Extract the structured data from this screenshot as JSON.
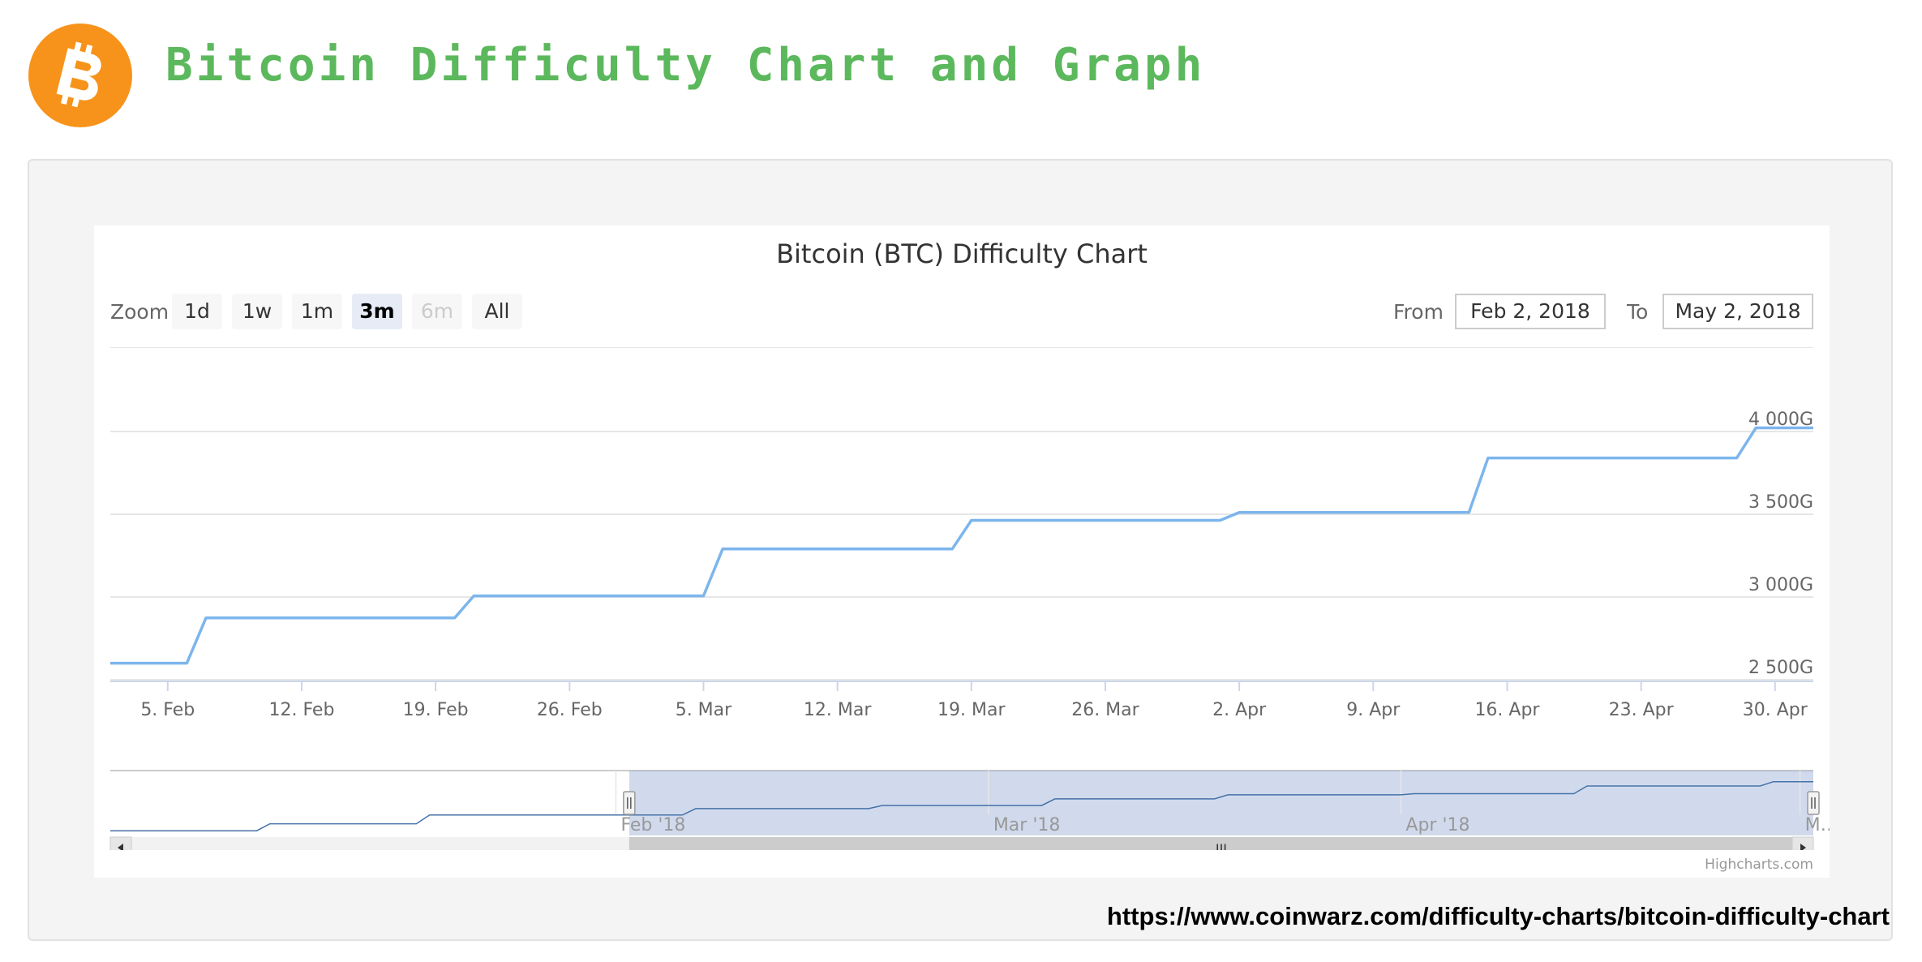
{
  "header": {
    "title": "Bitcoin Difficulty Chart and Graph",
    "logo_icon": "bitcoin-logo-icon",
    "logo_color": "#f7931a",
    "title_color": "#5cb85c"
  },
  "chart_panel": {
    "chart_title": "Bitcoin (BTC) Difficulty Chart",
    "zoom_label": "Zoom",
    "zoom_buttons": [
      {
        "label": "1d",
        "state": "normal"
      },
      {
        "label": "1w",
        "state": "normal"
      },
      {
        "label": "1m",
        "state": "normal"
      },
      {
        "label": "3m",
        "state": "active"
      },
      {
        "label": "6m",
        "state": "disabled"
      },
      {
        "label": "All",
        "state": "normal"
      }
    ],
    "from_label": "From",
    "from_value": "Feb 2, 2018",
    "to_label": "To",
    "to_value": "May 2, 2018",
    "credits": "Highcharts.com",
    "scrollbar_grip": "III",
    "navigator_handle": "II"
  },
  "source_url": "https://www.coinwarz.com/difficulty-charts/bitcoin-difficulty-chart",
  "chart_data": {
    "type": "line",
    "title": "Bitcoin (BTC) Difficulty Chart",
    "xlabel": "",
    "ylabel": "",
    "line_color": "#7cb5ec",
    "grid": true,
    "x_range": [
      "2018-02-02",
      "2018-05-02"
    ],
    "ylim": [
      2500,
      4100
    ],
    "yticks": [
      {
        "value": 2500,
        "label": "2 500G"
      },
      {
        "value": 3000,
        "label": "3 000G"
      },
      {
        "value": 3500,
        "label": "3 500G"
      },
      {
        "value": 4000,
        "label": "4 000G"
      }
    ],
    "xticks": [
      {
        "date": "2018-02-05",
        "label": "5. Feb"
      },
      {
        "date": "2018-02-12",
        "label": "12. Feb"
      },
      {
        "date": "2018-02-19",
        "label": "19. Feb"
      },
      {
        "date": "2018-02-26",
        "label": "26. Feb"
      },
      {
        "date": "2018-03-05",
        "label": "5. Mar"
      },
      {
        "date": "2018-03-12",
        "label": "12. Mar"
      },
      {
        "date": "2018-03-19",
        "label": "19. Mar"
      },
      {
        "date": "2018-03-26",
        "label": "26. Mar"
      },
      {
        "date": "2018-04-02",
        "label": "2. Apr"
      },
      {
        "date": "2018-04-09",
        "label": "9. Apr"
      },
      {
        "date": "2018-04-16",
        "label": "16. Apr"
      },
      {
        "date": "2018-04-23",
        "label": "23. Apr"
      },
      {
        "date": "2018-04-30",
        "label": "30. Apr"
      }
    ],
    "series": [
      {
        "x": [
          "2018-02-02",
          "2018-02-06",
          "2018-02-07",
          "2018-02-20",
          "2018-02-21",
          "2018-03-05",
          "2018-03-06",
          "2018-03-18",
          "2018-03-19",
          "2018-04-01",
          "2018-04-02",
          "2018-04-14",
          "2018-04-15",
          "2018-04-28",
          "2018-04-29",
          "2018-05-02"
        ],
        "y": [
          2600,
          2600,
          2874,
          2874,
          3007,
          3007,
          3290,
          3290,
          3463,
          3463,
          3511,
          3511,
          3840,
          3840,
          4022,
          4022
        ]
      }
    ],
    "navigator": {
      "labels": [
        {
          "date": "2018-02-01",
          "label": "Feb '18"
        },
        {
          "date": "2018-03-01",
          "label": "Mar '18"
        },
        {
          "date": "2018-04-01",
          "label": "Apr '18"
        },
        {
          "date": "2018-05-01",
          "label": "M…"
        }
      ],
      "x_range": [
        "2017-12-25",
        "2018-05-02"
      ],
      "selected_range": [
        "2018-02-02",
        "2018-05-02"
      ],
      "series": {
        "x": [
          "2017-12-25",
          "2018-01-05",
          "2018-01-06",
          "2018-01-17",
          "2018-01-18",
          "2018-02-06",
          "2018-02-07",
          "2018-02-20",
          "2018-02-21",
          "2018-03-05",
          "2018-03-06",
          "2018-03-18",
          "2018-03-19",
          "2018-04-01",
          "2018-04-02",
          "2018-04-14",
          "2018-04-15",
          "2018-04-28",
          "2018-04-29",
          "2018-05-02"
        ],
        "y": [
          1931,
          1931,
          2227,
          2227,
          2603,
          2603,
          2874,
          2874,
          3007,
          3007,
          3290,
          3290,
          3463,
          3463,
          3511,
          3511,
          3840,
          3840,
          4022,
          4022
        ]
      }
    }
  }
}
